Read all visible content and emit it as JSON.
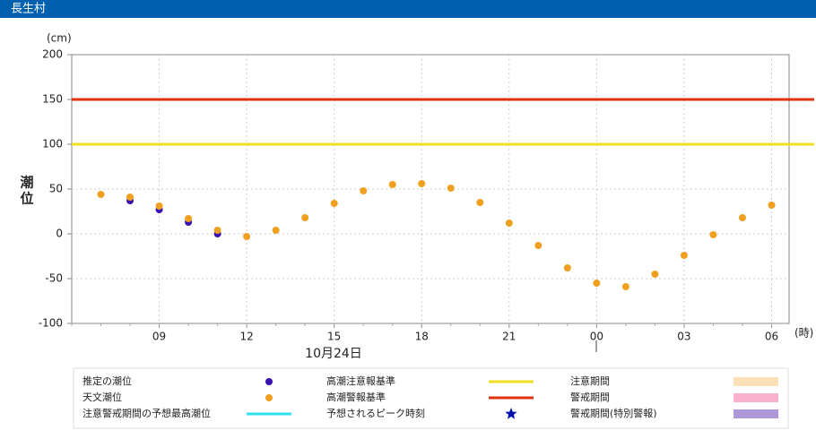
{
  "header": {
    "title": "長生村"
  },
  "chart_data": {
    "type": "scatter",
    "y_label": "潮位",
    "y_unit": "(cm)",
    "x_unit": "(時)",
    "date_label": "10月24日",
    "xlim": [
      6,
      30.6
    ],
    "xticks": [
      {
        "value": 9,
        "label": "09"
      },
      12,
      15,
      18,
      21,
      {
        "value": 24,
        "label": "00"
      },
      {
        "value": 27,
        "label": "03"
      },
      {
        "value": 30,
        "label": "06"
      }
    ],
    "ylim": [
      -100,
      200
    ],
    "yticks": [
      -100,
      -50,
      0,
      50,
      100,
      150,
      200
    ],
    "grid": true,
    "series": [
      {
        "name": "推定の潮位",
        "color": "#3a10b0",
        "x": [
          8,
          9,
          10,
          11
        ],
        "values": [
          37,
          27,
          13,
          0
        ]
      },
      {
        "name": "天文潮位",
        "color": "#f0a020",
        "x": [
          7,
          8,
          9,
          10,
          11,
          12,
          13,
          14,
          15,
          16,
          17,
          18,
          19,
          20,
          21,
          22,
          23,
          24,
          25,
          26,
          27,
          28,
          29,
          30
        ],
        "values": [
          44,
          41,
          31,
          17,
          4,
          -3,
          4,
          18,
          34,
          48,
          55,
          56,
          51,
          35,
          12,
          -13,
          -38,
          -55,
          -59,
          -45,
          -24,
          -1,
          18,
          32
        ]
      }
    ],
    "reference_lines": [
      {
        "name": "高潮注意報基準",
        "value": 100,
        "color": "#f0e020"
      },
      {
        "name": "高潮警報基準",
        "value": 150,
        "color": "#e03010"
      }
    ],
    "legend_extra": [
      {
        "name": "注意期間",
        "symbol": "rect",
        "color": "#fde0b8"
      },
      {
        "name": "警戒期間",
        "symbol": "rect",
        "color": "#f8b0cc"
      },
      {
        "name": "注意警戒期間の予想最高潮位",
        "symbol": "line",
        "color": "#30e0f0"
      },
      {
        "name": "予想されるピーク時刻",
        "symbol": "star",
        "color": "#0010b0"
      },
      {
        "name": "警戒期間(特別警報)",
        "symbol": "rect",
        "color": "#b098d8"
      }
    ]
  }
}
